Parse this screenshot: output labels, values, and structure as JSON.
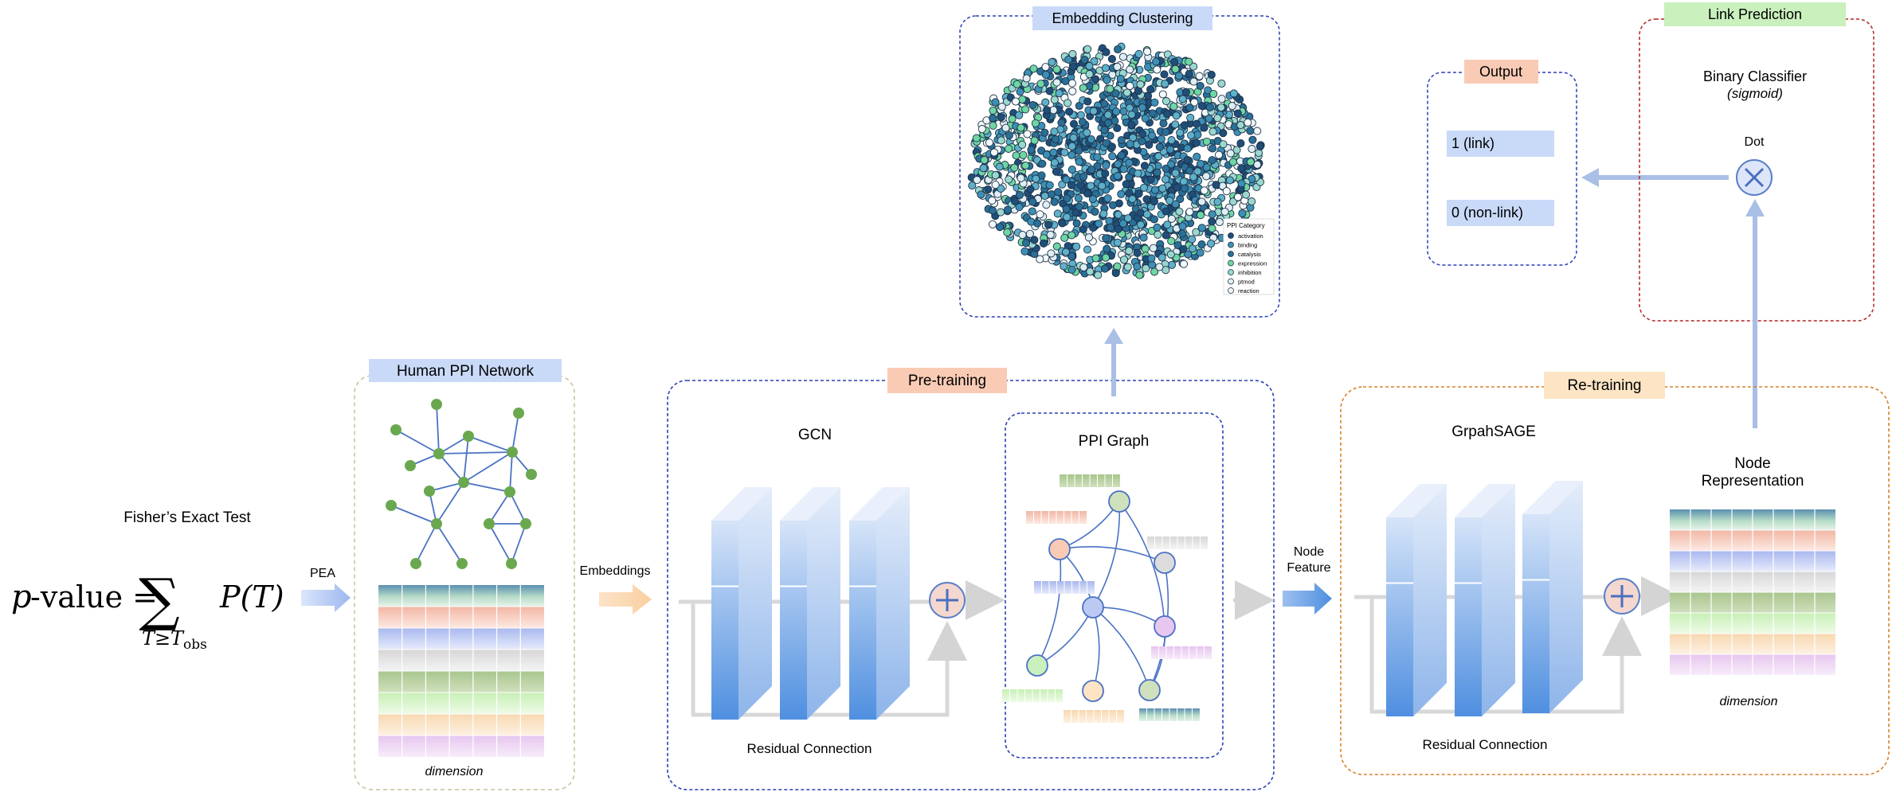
{
  "formula": {
    "title": "Fisher’s Exact Test",
    "lhs": "p",
    "lhs_rest": "-value =",
    "sum_symbol": "∑",
    "subscript_T": "T",
    "subscript_ge": "≥",
    "subscript_Tobs": "T",
    "subscript_obs": "obs",
    "rhs": "P(T)"
  },
  "arrows": {
    "pea": "PEA",
    "embeddings": "Embeddings",
    "node_feature_1": "Node",
    "node_feature_2": "Feature"
  },
  "human_ppi": {
    "title": "Human PPI Network",
    "dimension": "dimension"
  },
  "pretraining": {
    "title": "Pre-training",
    "gcn": "GCN",
    "residual": "Residual Connection",
    "ppi_graph": "PPI Graph"
  },
  "embedding_clustering": {
    "title": "Embedding Clustering",
    "legend_title": "PPI Category",
    "legend_items": [
      "activation",
      "binding",
      "catalysis",
      "expression",
      "inhibition",
      "ptmod",
      "reaction"
    ]
  },
  "output": {
    "title": "Output",
    "link": "1 (link)",
    "nonlink": "0 (non-link)"
  },
  "link_prediction": {
    "title": "Link Prediction",
    "classifier": "Binary Classifier",
    "sigmoid": "(sigmoid)",
    "dot": "Dot"
  },
  "retraining": {
    "title": "Re-training",
    "graphsage": "GrpahSAGE",
    "node_rep_1": "Node",
    "node_rep_2": "Representation",
    "dimension": "dimension",
    "residual": "Residual Connection"
  },
  "colors": {
    "node_green": "#6aa84f",
    "edge_blue": "#4a72c4",
    "box_blue": "#2a3fb5",
    "box_red": "#b22222",
    "box_orange": "#d9822b",
    "box_tan": "#c8bf9a",
    "label_blue": "#c9daf8",
    "label_peach": "#f9cbb5",
    "label_green": "#c9f0bd",
    "label_orange": "#fce4c4"
  }
}
